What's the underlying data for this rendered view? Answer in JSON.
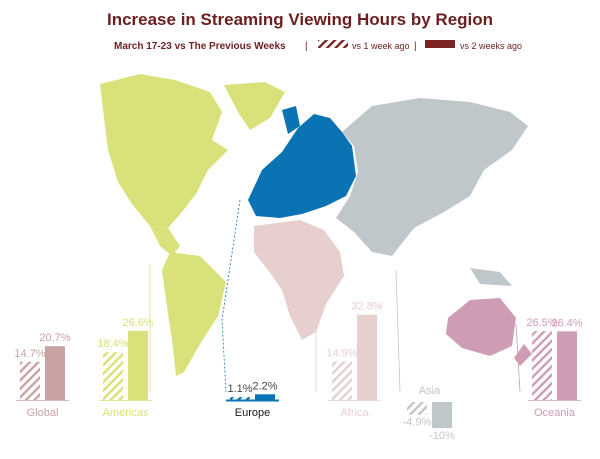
{
  "colors": {
    "title": "#6b1f1f",
    "global": "#c9a3a3",
    "americas": "#d9e27a",
    "europe": "#0a73b3",
    "africa": "#e7cfd0",
    "asia": "#c0c7ca",
    "oceania": "#cf9cb6",
    "dark_legend": "#7a2424",
    "label": "#444444"
  },
  "chart_data": {
    "type": "bar",
    "title": "Increase in Streaming Viewing Hours by Region",
    "subtitle": "March 17-23 vs The Previous Weeks",
    "legend": [
      {
        "label": "vs 1 week ago",
        "pattern": "hatched"
      },
      {
        "label": "vs 2 weeks ago",
        "pattern": "solid"
      }
    ],
    "legend_placement": "top",
    "unit": "%",
    "categories": [
      "Global",
      "Americas",
      "Europe",
      "Africa",
      "Asia",
      "Oceania"
    ],
    "series": [
      {
        "name": "vs 1 week ago",
        "values": [
          14.7,
          18.4,
          1.1,
          14.9,
          -4.9,
          26.5
        ]
      },
      {
        "name": "vs 2 weeks ago",
        "values": [
          20.7,
          26.6,
          2.2,
          32.8,
          -10,
          26.4
        ]
      }
    ],
    "data_labels": [
      [
        "14.7%",
        "20.7%"
      ],
      [
        "18.4%",
        "26.6%"
      ],
      [
        "1.1%",
        "2.2%"
      ],
      [
        "14.9%",
        "32.8%"
      ],
      [
        "-4.9%",
        "-10%"
      ],
      [
        "26.5%",
        "26.4%"
      ]
    ],
    "background": "world map with regions colored to match their bars"
  }
}
